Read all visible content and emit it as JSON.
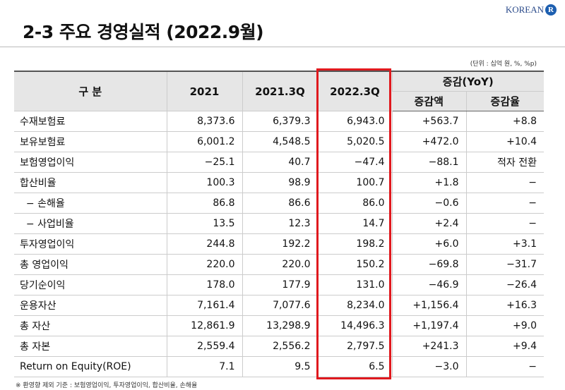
{
  "header": {
    "title": "2-3 주요 경영실적 (2022.9월)",
    "logo_text": "KOREAN",
    "logo_mark": "R"
  },
  "unit_note": "(단위 : 십억 원, %, %p)",
  "table": {
    "columns": [
      "구 분",
      "2021",
      "2021.3Q",
      "2022.3Q"
    ],
    "group_header": "증감(YoY)",
    "sub_columns": [
      "증감액",
      "증감율"
    ],
    "rows": [
      [
        "수재보험료",
        "8,373.6",
        "6,379.3",
        "6,943.0",
        "+563.7",
        "+8.8"
      ],
      [
        "보유보험료",
        "6,001.2",
        "4,548.5",
        "5,020.5",
        "+472.0",
        "+10.4"
      ],
      [
        "보험영업이익",
        "−25.1",
        "40.7",
        "−47.4",
        "−88.1",
        "적자 전환"
      ],
      [
        "합산비율",
        "100.3",
        "98.9",
        "100.7",
        "+1.8",
        "−"
      ],
      [
        "  − 손해율",
        "86.8",
        "86.6",
        "86.0",
        "−0.6",
        "−"
      ],
      [
        "  − 사업비율",
        "13.5",
        "12.3",
        "14.7",
        "+2.4",
        "−"
      ],
      [
        "투자영업이익",
        "244.8",
        "192.2",
        "198.2",
        "+6.0",
        "+3.1"
      ],
      [
        "총 영업이익",
        "220.0",
        "220.0",
        "150.2",
        "−69.8",
        "−31.7"
      ],
      [
        "당기순이익",
        "178.0",
        "177.9",
        "131.0",
        "−46.9",
        "−26.4"
      ],
      [
        "운용자산",
        "7,161.4",
        "7,077.6",
        "8,234.0",
        "+1,156.4",
        "+16.3"
      ],
      [
        "총 자산",
        "12,861.9",
        "13,298.9",
        "14,496.3",
        "+1,197.4",
        "+9.0"
      ],
      [
        "총 자본",
        "2,559.4",
        "2,556.2",
        "2,797.5",
        "+241.3",
        "+9.4"
      ],
      [
        "Return on Equity(ROE)",
        "7.1",
        "9.5",
        "6.5",
        "−3.0",
        "−"
      ]
    ]
  },
  "footnote": "※ 환영향 제외 기준 : 보험영업이익, 투자영업이익, 합산비율, 손해율"
}
